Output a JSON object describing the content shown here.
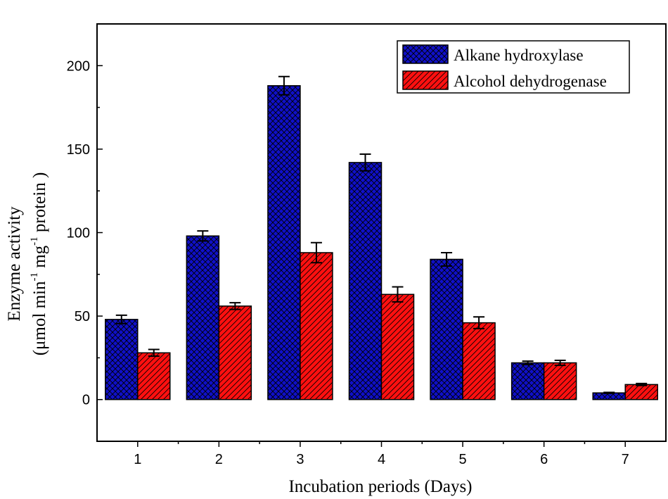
{
  "chart_data": {
    "type": "bar",
    "title": "",
    "xlabel": "Incubation periods (Days)",
    "ylabel_line1": "Enzyme activity",
    "ylabel_line2": {
      "p1": "(μmol min",
      "s1": "-1",
      "p2": " mg",
      "s2": "-1",
      "p3": " protein )"
    },
    "categories": [
      "1",
      "2",
      "3",
      "4",
      "5",
      "6",
      "7"
    ],
    "ylim": [
      -25,
      225
    ],
    "yticks": [
      0,
      50,
      100,
      150,
      200
    ],
    "series": [
      {
        "name": "Alkane hydroxylase",
        "color": "#1010c8",
        "hatch_color": "#000000",
        "pattern": "crosshatch",
        "values": [
          48,
          98,
          188,
          142,
          84,
          22,
          4
        ],
        "errors": [
          2.5,
          3,
          5.5,
          5,
          4,
          1,
          0.3
        ]
      },
      {
        "name": "Alcohol dehydrogenase",
        "color": "#ff1010",
        "hatch_color": "#000000",
        "pattern": "diagonal",
        "values": [
          28,
          56,
          88,
          63,
          46,
          22,
          9
        ],
        "errors": [
          2,
          2,
          6,
          4.5,
          3.5,
          1.5,
          0.6
        ]
      }
    ],
    "legend_position": "top-right"
  }
}
